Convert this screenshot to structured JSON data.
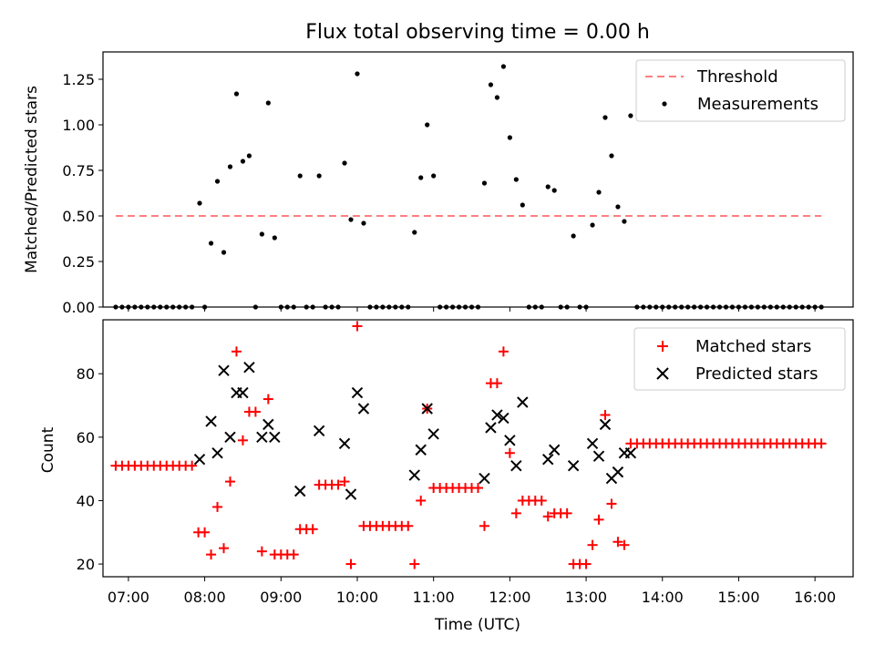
{
  "chart_data": [
    {
      "type": "scatter",
      "title": "Flux total observing time = 0.00 h",
      "xlabel": "",
      "ylabel": "Matched/Predicted stars",
      "ylim": [
        0,
        1.4
      ],
      "xlim": [
        "06:40",
        "16:30"
      ],
      "yticks": [
        "0.00",
        "0.25",
        "0.50",
        "0.75",
        "1.00",
        "1.25"
      ],
      "grid": false,
      "legend_position": "top-right",
      "threshold": {
        "name": "Threshold",
        "value": 0.5,
        "x_start": "06:50",
        "x_end": "16:05",
        "color": "#ff7f7f"
      },
      "series": [
        {
          "name": "Measurements",
          "color": "#000000",
          "points": [
            [
              "06:50",
              0
            ],
            [
              "06:55",
              0
            ],
            [
              "07:00",
              0
            ],
            [
              "07:05",
              0
            ],
            [
              "07:10",
              0
            ],
            [
              "07:15",
              0
            ],
            [
              "07:20",
              0
            ],
            [
              "07:25",
              0
            ],
            [
              "07:30",
              0
            ],
            [
              "07:35",
              0
            ],
            [
              "07:40",
              0
            ],
            [
              "07:45",
              0
            ],
            [
              "07:50",
              0
            ],
            [
              "07:56",
              0.57
            ],
            [
              "08:00",
              0
            ],
            [
              "08:05",
              0.35
            ],
            [
              "08:10",
              0.69
            ],
            [
              "08:15",
              0.3
            ],
            [
              "08:20",
              0.77
            ],
            [
              "08:25",
              1.17
            ],
            [
              "08:30",
              0.8
            ],
            [
              "08:35",
              0.83
            ],
            [
              "08:40",
              0
            ],
            [
              "08:45",
              0.4
            ],
            [
              "08:50",
              1.12
            ],
            [
              "08:55",
              0.38
            ],
            [
              "09:00",
              0
            ],
            [
              "09:05",
              0
            ],
            [
              "09:10",
              0
            ],
            [
              "09:15",
              0.72
            ],
            [
              "09:20",
              0
            ],
            [
              "09:25",
              0
            ],
            [
              "09:30",
              0.72
            ],
            [
              "09:35",
              0
            ],
            [
              "09:40",
              0
            ],
            [
              "09:45",
              0
            ],
            [
              "09:50",
              0.79
            ],
            [
              "09:55",
              0.48
            ],
            [
              "10:00",
              1.28
            ],
            [
              "10:05",
              0.46
            ],
            [
              "10:10",
              0
            ],
            [
              "10:15",
              0
            ],
            [
              "10:20",
              0
            ],
            [
              "10:25",
              0
            ],
            [
              "10:30",
              0
            ],
            [
              "10:35",
              0
            ],
            [
              "10:40",
              0
            ],
            [
              "10:45",
              0.41
            ],
            [
              "10:50",
              0.71
            ],
            [
              "10:55",
              1.0
            ],
            [
              "11:00",
              0.72
            ],
            [
              "11:05",
              0
            ],
            [
              "11:10",
              0
            ],
            [
              "11:15",
              0
            ],
            [
              "11:20",
              0
            ],
            [
              "11:25",
              0
            ],
            [
              "11:30",
              0
            ],
            [
              "11:35",
              0
            ],
            [
              "11:40",
              0.68
            ],
            [
              "11:45",
              1.22
            ],
            [
              "11:50",
              1.15
            ],
            [
              "11:55",
              1.32
            ],
            [
              "12:00",
              0.93
            ],
            [
              "12:05",
              0.7
            ],
            [
              "12:10",
              0.56
            ],
            [
              "12:15",
              0
            ],
            [
              "12:20",
              0
            ],
            [
              "12:25",
              0
            ],
            [
              "12:30",
              0.66
            ],
            [
              "12:35",
              0.64
            ],
            [
              "12:40",
              0
            ],
            [
              "12:45",
              0
            ],
            [
              "12:50",
              0.39
            ],
            [
              "12:55",
              0
            ],
            [
              "13:00",
              0
            ],
            [
              "13:05",
              0.45
            ],
            [
              "13:10",
              0.63
            ],
            [
              "13:15",
              1.04
            ],
            [
              "13:20",
              0.83
            ],
            [
              "13:25",
              0.55
            ],
            [
              "13:30",
              0.47
            ],
            [
              "13:35",
              1.05
            ],
            [
              "13:40",
              0
            ],
            [
              "13:45",
              0
            ],
            [
              "13:50",
              0
            ],
            [
              "13:55",
              0
            ],
            [
              "14:00",
              0
            ],
            [
              "14:05",
              0
            ],
            [
              "14:10",
              0
            ],
            [
              "14:15",
              0
            ],
            [
              "14:20",
              0
            ],
            [
              "14:25",
              0
            ],
            [
              "14:30",
              0
            ],
            [
              "14:35",
              0
            ],
            [
              "14:40",
              0
            ],
            [
              "14:45",
              0
            ],
            [
              "14:50",
              0
            ],
            [
              "14:55",
              0
            ],
            [
              "15:00",
              0
            ],
            [
              "15:05",
              0
            ],
            [
              "15:10",
              0
            ],
            [
              "15:15",
              0
            ],
            [
              "15:20",
              0
            ],
            [
              "15:25",
              0
            ],
            [
              "15:30",
              0
            ],
            [
              "15:35",
              0
            ],
            [
              "15:40",
              0
            ],
            [
              "15:45",
              0
            ],
            [
              "15:50",
              0
            ],
            [
              "15:55",
              0
            ],
            [
              "16:00",
              0
            ],
            [
              "16:05",
              0
            ]
          ]
        }
      ]
    },
    {
      "type": "scatter",
      "title": "",
      "xlabel": "Time (UTC)",
      "ylabel": "Count",
      "ylim": [
        16,
        97
      ],
      "xlim": [
        "06:40",
        "16:30"
      ],
      "yticks": [
        "20",
        "40",
        "60",
        "80"
      ],
      "xticks": [
        "07:00",
        "08:00",
        "09:00",
        "10:00",
        "11:00",
        "12:00",
        "13:00",
        "14:00",
        "15:00",
        "16:00"
      ],
      "grid": false,
      "legend_position": "top-right",
      "series": [
        {
          "name": "Matched stars",
          "marker": "+",
          "color": "#ff0000",
          "points": [
            [
              "06:50",
              51
            ],
            [
              "06:55",
              51
            ],
            [
              "07:00",
              51
            ],
            [
              "07:05",
              51
            ],
            [
              "07:10",
              51
            ],
            [
              "07:15",
              51
            ],
            [
              "07:20",
              51
            ],
            [
              "07:25",
              51
            ],
            [
              "07:30",
              51
            ],
            [
              "07:35",
              51
            ],
            [
              "07:40",
              51
            ],
            [
              "07:45",
              51
            ],
            [
              "07:50",
              51
            ],
            [
              "07:55",
              30
            ],
            [
              "08:00",
              30
            ],
            [
              "08:05",
              23
            ],
            [
              "08:10",
              38
            ],
            [
              "08:15",
              25
            ],
            [
              "08:20",
              46
            ],
            [
              "08:25",
              87
            ],
            [
              "08:30",
              59
            ],
            [
              "08:35",
              68
            ],
            [
              "08:40",
              68
            ],
            [
              "08:45",
              24
            ],
            [
              "08:50",
              72
            ],
            [
              "08:55",
              23
            ],
            [
              "09:00",
              23
            ],
            [
              "09:05",
              23
            ],
            [
              "09:10",
              23
            ],
            [
              "09:15",
              31
            ],
            [
              "09:20",
              31
            ],
            [
              "09:25",
              31
            ],
            [
              "09:30",
              45
            ],
            [
              "09:35",
              45
            ],
            [
              "09:40",
              45
            ],
            [
              "09:45",
              45
            ],
            [
              "09:50",
              46
            ],
            [
              "09:55",
              20
            ],
            [
              "10:00",
              95
            ],
            [
              "10:05",
              32
            ],
            [
              "10:10",
              32
            ],
            [
              "10:15",
              32
            ],
            [
              "10:20",
              32
            ],
            [
              "10:25",
              32
            ],
            [
              "10:30",
              32
            ],
            [
              "10:35",
              32
            ],
            [
              "10:40",
              32
            ],
            [
              "10:45",
              20
            ],
            [
              "10:50",
              40
            ],
            [
              "10:55",
              69
            ],
            [
              "11:00",
              44
            ],
            [
              "11:05",
              44
            ],
            [
              "11:10",
              44
            ],
            [
              "11:15",
              44
            ],
            [
              "11:20",
              44
            ],
            [
              "11:25",
              44
            ],
            [
              "11:30",
              44
            ],
            [
              "11:35",
              44
            ],
            [
              "11:40",
              32
            ],
            [
              "11:45",
              77
            ],
            [
              "11:50",
              77
            ],
            [
              "11:55",
              87
            ],
            [
              "12:00",
              55
            ],
            [
              "12:05",
              36
            ],
            [
              "12:10",
              40
            ],
            [
              "12:15",
              40
            ],
            [
              "12:20",
              40
            ],
            [
              "12:25",
              40
            ],
            [
              "12:30",
              35
            ],
            [
              "12:35",
              36
            ],
            [
              "12:40",
              36
            ],
            [
              "12:45",
              36
            ],
            [
              "12:50",
              20
            ],
            [
              "12:55",
              20
            ],
            [
              "13:00",
              20
            ],
            [
              "13:05",
              26
            ],
            [
              "13:10",
              34
            ],
            [
              "13:15",
              67
            ],
            [
              "13:20",
              39
            ],
            [
              "13:25",
              27
            ],
            [
              "13:30",
              26
            ],
            [
              "13:35",
              58
            ],
            [
              "13:40",
              58
            ],
            [
              "13:45",
              58
            ],
            [
              "13:50",
              58
            ],
            [
              "13:55",
              58
            ],
            [
              "14:00",
              58
            ],
            [
              "14:05",
              58
            ],
            [
              "14:10",
              58
            ],
            [
              "14:15",
              58
            ],
            [
              "14:20",
              58
            ],
            [
              "14:25",
              58
            ],
            [
              "14:30",
              58
            ],
            [
              "14:35",
              58
            ],
            [
              "14:40",
              58
            ],
            [
              "14:45",
              58
            ],
            [
              "14:50",
              58
            ],
            [
              "14:55",
              58
            ],
            [
              "15:00",
              58
            ],
            [
              "15:05",
              58
            ],
            [
              "15:10",
              58
            ],
            [
              "15:15",
              58
            ],
            [
              "15:20",
              58
            ],
            [
              "15:25",
              58
            ],
            [
              "15:30",
              58
            ],
            [
              "15:35",
              58
            ],
            [
              "15:40",
              58
            ],
            [
              "15:45",
              58
            ],
            [
              "15:50",
              58
            ],
            [
              "15:55",
              58
            ],
            [
              "16:00",
              58
            ],
            [
              "16:05",
              58
            ]
          ]
        },
        {
          "name": "Predicted stars",
          "marker": "x",
          "color": "#000000",
          "points": [
            [
              "07:56",
              53
            ],
            [
              "08:05",
              65
            ],
            [
              "08:10",
              55
            ],
            [
              "08:15",
              81
            ],
            [
              "08:20",
              60
            ],
            [
              "08:25",
              74
            ],
            [
              "08:30",
              74
            ],
            [
              "08:35",
              82
            ],
            [
              "08:45",
              60
            ],
            [
              "08:50",
              64
            ],
            [
              "08:55",
              60
            ],
            [
              "09:15",
              43
            ],
            [
              "09:30",
              62
            ],
            [
              "09:50",
              58
            ],
            [
              "09:55",
              42
            ],
            [
              "10:00",
              74
            ],
            [
              "10:05",
              69
            ],
            [
              "10:45",
              48
            ],
            [
              "10:50",
              56
            ],
            [
              "10:55",
              69
            ],
            [
              "11:00",
              61
            ],
            [
              "11:40",
              47
            ],
            [
              "11:45",
              63
            ],
            [
              "11:50",
              67
            ],
            [
              "11:55",
              66
            ],
            [
              "12:00",
              59
            ],
            [
              "12:05",
              51
            ],
            [
              "12:10",
              71
            ],
            [
              "12:30",
              53
            ],
            [
              "12:35",
              56
            ],
            [
              "12:50",
              51
            ],
            [
              "13:05",
              58
            ],
            [
              "13:10",
              54
            ],
            [
              "13:15",
              64
            ],
            [
              "13:20",
              47
            ],
            [
              "13:25",
              49
            ],
            [
              "13:30",
              55
            ],
            [
              "13:35",
              55
            ]
          ]
        }
      ]
    }
  ]
}
